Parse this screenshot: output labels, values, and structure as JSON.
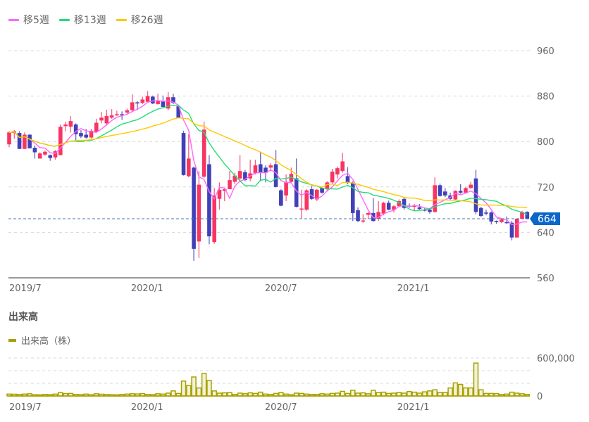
{
  "legend": {
    "items": [
      {
        "label": "移5週",
        "color": "#ff66ff",
        "period": 5
      },
      {
        "label": "移13週",
        "color": "#22dd77",
        "period": 13
      },
      {
        "label": "移26週",
        "color": "#ffc800",
        "period": 26
      }
    ]
  },
  "volume_panel": {
    "title": "出来高",
    "legend_label": "出来高（株）",
    "color": "#a8a000"
  },
  "chart_data": [
    {
      "type": "candlestick",
      "interval": "weekly",
      "up_color": "#f83462",
      "down_color": "#4040b8",
      "ylim": [
        560,
        960
      ],
      "y_ticks": [
        "960",
        "880",
        "800",
        "720",
        "640",
        "560"
      ],
      "y_tick_values": [
        960,
        880,
        800,
        720,
        640,
        560
      ],
      "grid": true,
      "current_price": 664,
      "current_price_label": "664",
      "current_price_color": "#0a66c8",
      "x_ticks": [
        {
          "label": "2019/7",
          "index": 0
        },
        {
          "label": "2020/1",
          "index": 24.3
        },
        {
          "label": "2020/7",
          "index": 50.4
        },
        {
          "label": "2021/1",
          "index": 76.2
        }
      ],
      "ohlc": [
        [
          795,
          818,
          790,
          816
        ],
        [
          815,
          820,
          805,
          818
        ],
        [
          815,
          818,
          787,
          787
        ],
        [
          787,
          816,
          787,
          812
        ],
        [
          812,
          813,
          788,
          788
        ],
        [
          789,
          793,
          770,
          781
        ],
        [
          770,
          781,
          770,
          779
        ],
        [
          777,
          784,
          775,
          782
        ],
        [
          776,
          777,
          766,
          771
        ],
        [
          772,
          785,
          768,
          783
        ],
        [
          776,
          830,
          776,
          826
        ],
        [
          827,
          835,
          818,
          830
        ],
        [
          826,
          845,
          816,
          836
        ],
        [
          830,
          832,
          801,
          813
        ],
        [
          815,
          820,
          806,
          809
        ],
        [
          812,
          822,
          805,
          807
        ],
        [
          807,
          822,
          805,
          819
        ],
        [
          817,
          840,
          815,
          833
        ],
        [
          837,
          852,
          832,
          842
        ],
        [
          832,
          856,
          828,
          845
        ],
        [
          842,
          857,
          840,
          846
        ],
        [
          846,
          854,
          845,
          848
        ],
        [
          848,
          853,
          838,
          846
        ],
        [
          851,
          858,
          849,
          855
        ],
        [
          855,
          883,
          852,
          869
        ],
        [
          869,
          871,
          855,
          867
        ],
        [
          868,
          879,
          866,
          874
        ],
        [
          870,
          889,
          868,
          880
        ],
        [
          879,
          881,
          866,
          867
        ],
        [
          866,
          884,
          865,
          872
        ],
        [
          871,
          881,
          860,
          861
        ],
        [
          858,
          887,
          855,
          878
        ],
        [
          878,
          884,
          866,
          868
        ],
        [
          862,
          864,
          841,
          842
        ],
        [
          815,
          819,
          740,
          741
        ],
        [
          739,
          813,
          737,
          770
        ],
        [
          754,
          756,
          590,
          611
        ],
        [
          624,
          748,
          595,
          724
        ],
        [
          738,
          835,
          736,
          821
        ],
        [
          760,
          776,
          619,
          633
        ],
        [
          623,
          718,
          620,
          705
        ],
        [
          699,
          728,
          680,
          715
        ],
        [
          713,
          718,
          695,
          716
        ],
        [
          716,
          748,
          716,
          732
        ],
        [
          729,
          745,
          725,
          740
        ],
        [
          735,
          776,
          732,
          748
        ],
        [
          746,
          750,
          730,
          732
        ],
        [
          735,
          768,
          730,
          744
        ],
        [
          744,
          768,
          742,
          758
        ],
        [
          760,
          781,
          730,
          745
        ],
        [
          754,
          758,
          728,
          745
        ],
        [
          754,
          762,
          748,
          758
        ],
        [
          760,
          785,
          719,
          720
        ],
        [
          714,
          716,
          686,
          687
        ],
        [
          705,
          742,
          695,
          729
        ],
        [
          729,
          754,
          728,
          743
        ],
        [
          735,
          770,
          684,
          685
        ],
        [
          680,
          715,
          665,
          682
        ],
        [
          680,
          716,
          678,
          714
        ],
        [
          716,
          722,
          697,
          699
        ],
        [
          698,
          717,
          695,
          715
        ],
        [
          718,
          720,
          708,
          710
        ],
        [
          716,
          730,
          712,
          728
        ],
        [
          728,
          752,
          726,
          747
        ],
        [
          742,
          756,
          735,
          753
        ],
        [
          748,
          780,
          745,
          765
        ],
        [
          739,
          755,
          725,
          727
        ],
        [
          727,
          730,
          660,
          674
        ],
        [
          679,
          684,
          658,
          660
        ],
        [
          660,
          672,
          657,
          661
        ],
        [
          671,
          676,
          664,
          674
        ],
        [
          674,
          700,
          659,
          660
        ],
        [
          664,
          695,
          660,
          676
        ],
        [
          673,
          694,
          670,
          692
        ],
        [
          692,
          696,
          679,
          680
        ],
        [
          680,
          688,
          675,
          686
        ],
        [
          686,
          698,
          684,
          695
        ],
        [
          699,
          702,
          680,
          683
        ],
        [
          687,
          691,
          683,
          685
        ],
        [
          685,
          690,
          678,
          687
        ],
        [
          684,
          690,
          680,
          681
        ],
        [
          680,
          683,
          677,
          679
        ],
        [
          680,
          681,
          673,
          676
        ],
        [
          676,
          737,
          675,
          723
        ],
        [
          723,
          726,
          703,
          704
        ],
        [
          712,
          718,
          702,
          705
        ],
        [
          705,
          710,
          697,
          699
        ],
        [
          698,
          714,
          697,
          713
        ],
        [
          713,
          725,
          708,
          710
        ],
        [
          710,
          720,
          708,
          718
        ],
        [
          718,
          729,
          717,
          724
        ],
        [
          735,
          750,
          672,
          676
        ],
        [
          683,
          685,
          667,
          669
        ],
        [
          675,
          680,
          670,
          673
        ],
        [
          675,
          677,
          654,
          659
        ],
        [
          660,
          661,
          655,
          658
        ],
        [
          658,
          664,
          656,
          663
        ],
        [
          658,
          668,
          655,
          657
        ],
        [
          657,
          660,
          626,
          631
        ],
        [
          631,
          665,
          631,
          664
        ],
        [
          664,
          678,
          663,
          676
        ],
        [
          676,
          677,
          663,
          664
        ]
      ]
    },
    {
      "type": "bar",
      "ylim": [
        0,
        600000
      ],
      "y_ticks": [
        "600,000",
        "0"
      ],
      "y_tick_values": [
        600000,
        0
      ],
      "grid_values": [
        200000,
        400000,
        600000
      ],
      "x_ticks": [
        {
          "label": "2019/7",
          "index": 0
        },
        {
          "label": "2020/1",
          "index": 24.3
        },
        {
          "label": "2020/7",
          "index": 50.4
        },
        {
          "label": "2021/1",
          "index": 76.2
        }
      ],
      "values": [
        30000,
        28000,
        25000,
        30000,
        35000,
        20000,
        18000,
        25000,
        22000,
        30000,
        55000,
        38000,
        40000,
        25000,
        22000,
        30000,
        20000,
        35000,
        28000,
        25000,
        20000,
        18000,
        25000,
        30000,
        35000,
        32000,
        38000,
        25000,
        22000,
        35000,
        30000,
        45000,
        80000,
        40000,
        235000,
        165000,
        300000,
        127000,
        355000,
        245000,
        80000,
        45000,
        50000,
        55000,
        25000,
        45000,
        35000,
        50000,
        40000,
        60000,
        30000,
        25000,
        40000,
        55000,
        30000,
        20000,
        45000,
        40000,
        30000,
        25000,
        25000,
        35000,
        30000,
        40000,
        45000,
        73000,
        40000,
        90000,
        45000,
        50000,
        35000,
        90000,
        55000,
        60000,
        40000,
        45000,
        55000,
        45000,
        70000,
        60000,
        45000,
        65000,
        80000,
        98000,
        55000,
        55000,
        127000,
        207000,
        182000,
        127000,
        127000,
        520000,
        98000,
        40000,
        40000,
        38000,
        25000,
        30000,
        60000,
        45000,
        35000,
        25000
      ]
    }
  ]
}
